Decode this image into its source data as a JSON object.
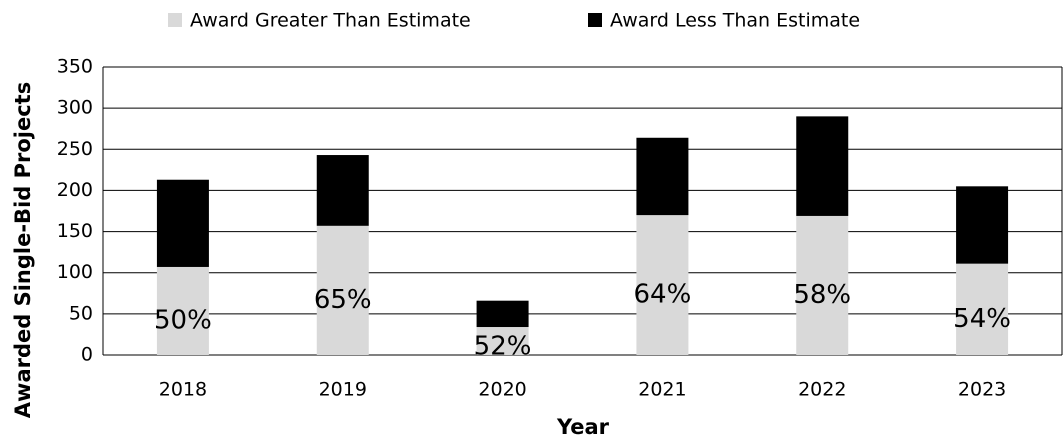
{
  "chart_data": {
    "type": "stacked_bar",
    "xlabel": "Year",
    "ylabel": "Awarded Single-Bid Projects",
    "categories": [
      "2018",
      "2019",
      "2020",
      "2021",
      "2022",
      "2023"
    ],
    "series": [
      {
        "name": "Award Greater Than Estimate",
        "color": "#d9d9d9",
        "values": [
          107,
          157,
          34,
          170,
          169,
          111
        ]
      },
      {
        "name": "Award Less Than Estimate",
        "color": "#000000",
        "values": [
          106,
          86,
          32,
          94,
          121,
          94
        ]
      }
    ],
    "annotations": [
      "50%",
      "65%",
      "52%",
      "64%",
      "58%",
      "54%"
    ],
    "ylim": [
      0,
      350
    ],
    "yticks": [
      0,
      50,
      100,
      150,
      200,
      250,
      300,
      350
    ],
    "grid": true,
    "legend": "top"
  }
}
